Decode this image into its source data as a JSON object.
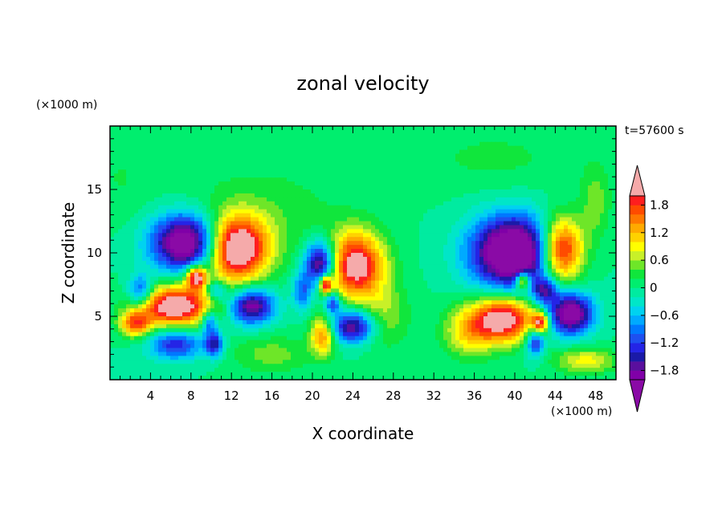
{
  "chart_data": {
    "type": "heatmap",
    "title": "zonal velocity",
    "xlabel": "X coordinate",
    "ylabel": "Z coordinate",
    "x_unit": "(×1000 m)",
    "y_unit": "(×1000 m)",
    "time_label": "t=57600 s",
    "xlim": [
      0,
      50
    ],
    "ylim": [
      0,
      20
    ],
    "x_ticks": [
      4,
      8,
      12,
      16,
      20,
      24,
      28,
      32,
      36,
      40,
      44,
      48
    ],
    "y_ticks": [
      5,
      10,
      15
    ],
    "colorbar": {
      "levels": [
        -2.0,
        -1.8,
        -1.6,
        -1.4,
        -1.2,
        -1.0,
        -0.8,
        -0.6,
        -0.4,
        -0.2,
        0.0,
        0.2,
        0.4,
        0.6,
        0.8,
        1.0,
        1.2,
        1.4,
        1.6,
        1.8,
        2.0
      ],
      "colors": [
        "#8000a8",
        "#5a0f9e",
        "#1a1aa8",
        "#2424e6",
        "#1e50f0",
        "#0078ff",
        "#00aaff",
        "#00d2f0",
        "#00e6c8",
        "#00eba0",
        "#00ee6e",
        "#10e63c",
        "#6ee628",
        "#c8f028",
        "#ffff00",
        "#ffd200",
        "#ffaa00",
        "#ff7800",
        "#ff4b00",
        "#ff1e1e",
        "#ff2a2a"
      ],
      "over_color": "#f5aaaa",
      "under_color": "#8a0aa6",
      "tick_labels": [
        "1.8",
        "1.2",
        "0.6",
        "0",
        "−0.6",
        "−1.2",
        "−1.8"
      ],
      "tick_values": [
        1.8,
        1.2,
        0.6,
        0.0,
        -0.6,
        -1.2,
        -1.8
      ]
    },
    "features": [
      {
        "x": 7.5,
        "z": 10.8,
        "a": -2.6,
        "sx": 3.4,
        "sz": 2.2
      },
      {
        "x": 12.5,
        "z": 10.3,
        "a": 2.7,
        "sx": 3.0,
        "sz": 2.5
      },
      {
        "x": 6.5,
        "z": 5.8,
        "a": 2.5,
        "sx": 3.6,
        "sz": 1.6
      },
      {
        "x": 14.0,
        "z": 5.8,
        "a": -2.0,
        "sx": 2.2,
        "sz": 1.4
      },
      {
        "x": 3.0,
        "z": 7.0,
        "a": -1.3,
        "sx": 1.2,
        "sz": 1.2
      },
      {
        "x": 6.5,
        "z": 2.8,
        "a": -1.4,
        "sx": 2.6,
        "sz": 1.2
      },
      {
        "x": 2.5,
        "z": 4.4,
        "a": 1.6,
        "sx": 1.5,
        "sz": 1.0
      },
      {
        "x": 10.3,
        "z": 2.8,
        "a": -1.5,
        "sx": 0.9,
        "sz": 1.0
      },
      {
        "x": 9.8,
        "z": 4.6,
        "a": -1.2,
        "sx": 0.8,
        "sz": 1.0
      },
      {
        "x": 10.5,
        "z": 7.0,
        "a": -1.0,
        "sx": 1.0,
        "sz": 0.8
      },
      {
        "x": 8.5,
        "z": 8.1,
        "a": 2.3,
        "sx": 1.0,
        "sz": 0.9
      },
      {
        "x": 16.0,
        "z": 2.0,
        "a": 0.5,
        "sx": 4.0,
        "sz": 1.5
      },
      {
        "x": 15.0,
        "z": 13.0,
        "a": 0.35,
        "sx": 8.0,
        "sz": 4.0
      },
      {
        "x": 1.0,
        "z": 16.0,
        "a": 0.2,
        "sx": 3.0,
        "sz": 3.0
      },
      {
        "x": 20.8,
        "z": 9.2,
        "a": -2.2,
        "sx": 1.5,
        "sz": 1.7
      },
      {
        "x": 24.3,
        "z": 9.0,
        "a": 2.3,
        "sx": 2.8,
        "sz": 2.6
      },
      {
        "x": 24.0,
        "z": 4.2,
        "a": -1.9,
        "sx": 2.2,
        "sz": 1.3
      },
      {
        "x": 21.0,
        "z": 3.5,
        "a": 1.5,
        "sx": 1.2,
        "sz": 1.5
      },
      {
        "x": 19.0,
        "z": 7.0,
        "a": -1.0,
        "sx": 1.0,
        "sz": 1.5
      },
      {
        "x": 22.0,
        "z": 6.0,
        "a": -1.3,
        "sx": 0.8,
        "sz": 0.8
      },
      {
        "x": 21.3,
        "z": 7.5,
        "a": 2.2,
        "sx": 0.6,
        "sz": 0.7
      },
      {
        "x": 27.0,
        "z": 5.0,
        "a": 0.6,
        "sx": 2.5,
        "sz": 2.5
      },
      {
        "x": 40.0,
        "z": 10.0,
        "a": -3.0,
        "sx": 4.2,
        "sz": 2.8
      },
      {
        "x": 44.5,
        "z": 10.2,
        "a": 2.6,
        "sx": 2.2,
        "sz": 2.5
      },
      {
        "x": 39.0,
        "z": 4.8,
        "a": 2.4,
        "sx": 3.0,
        "sz": 1.8
      },
      {
        "x": 45.5,
        "z": 5.2,
        "a": -2.4,
        "sx": 2.2,
        "sz": 1.6
      },
      {
        "x": 35.5,
        "z": 3.8,
        "a": 1.0,
        "sx": 2.5,
        "sz": 2.0
      },
      {
        "x": 42.0,
        "z": 3.0,
        "a": -1.4,
        "sx": 0.9,
        "sz": 1.2
      },
      {
        "x": 43.0,
        "z": 7.0,
        "a": -1.4,
        "sx": 1.2,
        "sz": 1.0
      },
      {
        "x": 40.8,
        "z": 7.8,
        "a": 2.0,
        "sx": 0.7,
        "sz": 0.7
      },
      {
        "x": 42.5,
        "z": 4.5,
        "a": 2.0,
        "sx": 0.8,
        "sz": 0.8
      },
      {
        "x": 48.0,
        "z": 14.0,
        "a": 0.5,
        "sx": 1.5,
        "sz": 3.0
      },
      {
        "x": 47.0,
        "z": 1.5,
        "a": 0.9,
        "sx": 3.0,
        "sz": 1.0
      },
      {
        "x": 38.0,
        "z": 17.5,
        "a": 0.25,
        "sx": 8.0,
        "sz": 2.5
      }
    ]
  }
}
